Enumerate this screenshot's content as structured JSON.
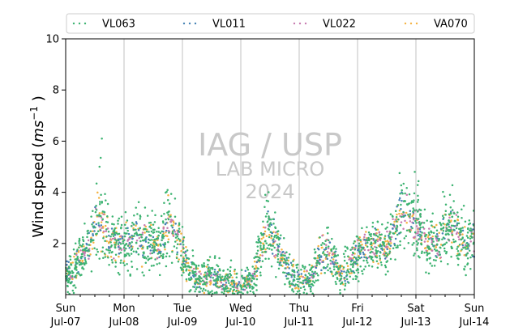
{
  "chart_data": {
    "type": "scatter",
    "ylabel_prefix": "Wind speed (",
    "ylabel_unit_base": "ms",
    "ylabel_unit_exp": "−1",
    "ylabel_suffix": " )",
    "ylim": [
      0,
      10
    ],
    "y_ticks": [
      "2",
      "4",
      "6",
      "8",
      "10"
    ],
    "x_range_days": [
      0,
      7
    ],
    "x_ticks": [
      {
        "day": 0,
        "line1": "Sun",
        "line2": "Jul-07"
      },
      {
        "day": 1,
        "line1": "Mon",
        "line2": "Jul-08"
      },
      {
        "day": 2,
        "line1": "Tue",
        "line2": "Jul-09"
      },
      {
        "day": 3,
        "line1": "Wed",
        "line2": "Jul-10"
      },
      {
        "day": 4,
        "line1": "Thu",
        "line2": "Jul-11"
      },
      {
        "day": 5,
        "line1": "Fri",
        "line2": "Jul-12"
      },
      {
        "day": 6,
        "line1": "Sat",
        "line2": "Jul-13"
      },
      {
        "day": 7,
        "line1": "Sun",
        "line2": "Jul-14"
      }
    ],
    "grid": "vertical-at-days",
    "legend_position": "top",
    "series": [
      {
        "name": "VL063",
        "color": "#3cb371"
      },
      {
        "name": "VL011",
        "color": "#4682b4"
      },
      {
        "name": "VL022",
        "color": "#c77bb0"
      },
      {
        "name": "VA070",
        "color": "#f5b342"
      }
    ],
    "profile": [
      [
        0.0,
        0.8
      ],
      [
        0.15,
        0.9
      ],
      [
        0.25,
        1.4
      ],
      [
        0.45,
        2.0
      ],
      [
        0.55,
        3.2
      ],
      [
        0.65,
        2.6
      ],
      [
        0.8,
        2.0
      ],
      [
        1.0,
        2.0
      ],
      [
        1.2,
        2.2
      ],
      [
        1.45,
        2.0
      ],
      [
        1.6,
        1.9
      ],
      [
        1.75,
        2.8
      ],
      [
        1.88,
        2.5
      ],
      [
        2.0,
        1.7
      ],
      [
        2.1,
        0.8
      ],
      [
        2.3,
        0.6
      ],
      [
        2.5,
        0.8
      ],
      [
        2.7,
        0.5
      ],
      [
        3.0,
        0.4
      ],
      [
        3.2,
        0.6
      ],
      [
        3.3,
        1.4
      ],
      [
        3.45,
        2.6
      ],
      [
        3.55,
        2.3
      ],
      [
        3.7,
        1.5
      ],
      [
        3.85,
        0.8
      ],
      [
        4.0,
        0.6
      ],
      [
        4.2,
        0.6
      ],
      [
        4.35,
        1.6
      ],
      [
        4.5,
        1.7
      ],
      [
        4.7,
        0.8
      ],
      [
        4.9,
        1.1
      ],
      [
        5.0,
        1.6
      ],
      [
        5.2,
        1.9
      ],
      [
        5.5,
        2.0
      ],
      [
        5.6,
        2.3
      ],
      [
        5.75,
        3.2
      ],
      [
        5.9,
        3.0
      ],
      [
        6.05,
        2.6
      ],
      [
        6.2,
        2.0
      ],
      [
        6.35,
        2.1
      ],
      [
        6.5,
        2.5
      ],
      [
        6.6,
        2.8
      ],
      [
        6.75,
        2.2
      ],
      [
        6.9,
        1.9
      ],
      [
        7.0,
        2.2
      ]
    ]
  },
  "watermark": {
    "line1": "IAG / USP",
    "line2": "LAB MICRO",
    "line3": "2024"
  }
}
